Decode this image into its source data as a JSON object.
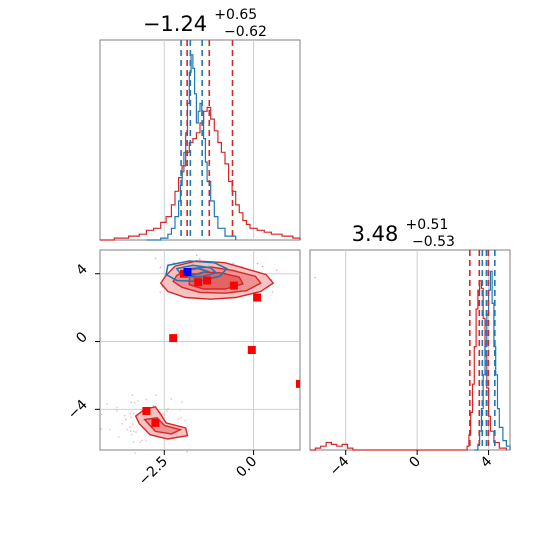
{
  "chart_data": {
    "type": "corner",
    "colors": {
      "blue": "#1f77b4",
      "red": "#d62728",
      "marker_blue": "#0000ff",
      "marker_red": "#ff0000",
      "grid": "#cfcfcf",
      "frame": "#808080"
    },
    "parameters": [
      {
        "title": {
          "main": "−1.24",
          "sup": "+0.65",
          "sub": "−0.62"
        },
        "range": [
          -4.3,
          1.3
        ],
        "ticks": [
          {
            "v": -2.5,
            "label": "−2.5"
          },
          {
            "v": 0.0,
            "label": "0.0"
          }
        ]
      },
      {
        "title": {
          "main": "3.48",
          "sup": "+0.51",
          "sub": "−0.53"
        },
        "range": [
          -6.0,
          5.2
        ],
        "ticks": [
          {
            "v": -4,
            "label": "−4"
          },
          {
            "v": 0,
            "label": "0"
          },
          {
            "v": 4,
            "label": "4"
          }
        ]
      }
    ],
    "scatter_y_ticks": [
      {
        "v": 4,
        "label": "4"
      },
      {
        "v": 0,
        "label": "0"
      },
      {
        "v": -4,
        "label": "−4"
      }
    ],
    "scatter_y_range": [
      -6.4,
      5.4
    ],
    "hist1": {
      "red_quantiles": [
        -1.86,
        -1.24,
        -0.59
      ],
      "blue_quantiles": [
        -2.03,
        -1.77,
        -1.44
      ],
      "red_hist": [
        [
          -4.3,
          0
        ],
        [
          -3.9,
          0.01
        ],
        [
          -3.5,
          0.02
        ],
        [
          -3.2,
          0.03
        ],
        [
          -3.0,
          0.05
        ],
        [
          -2.8,
          0.06
        ],
        [
          -2.6,
          0.09
        ],
        [
          -2.45,
          0.12
        ],
        [
          -2.3,
          0.18
        ],
        [
          -2.2,
          0.25
        ],
        [
          -2.1,
          0.32
        ],
        [
          -2.0,
          0.38
        ],
        [
          -1.9,
          0.45
        ],
        [
          -1.8,
          0.5
        ],
        [
          -1.7,
          0.52
        ],
        [
          -1.6,
          0.55
        ],
        [
          -1.5,
          0.6
        ],
        [
          -1.4,
          0.66
        ],
        [
          -1.3,
          0.68
        ],
        [
          -1.2,
          0.62
        ],
        [
          -1.1,
          0.56
        ],
        [
          -1.0,
          0.5
        ],
        [
          -0.9,
          0.45
        ],
        [
          -0.8,
          0.39
        ],
        [
          -0.7,
          0.3
        ],
        [
          -0.6,
          0.25
        ],
        [
          -0.5,
          0.18
        ],
        [
          -0.4,
          0.14
        ],
        [
          -0.3,
          0.1
        ],
        [
          -0.2,
          0.08
        ],
        [
          -0.1,
          0.06
        ],
        [
          0.1,
          0.05
        ],
        [
          0.3,
          0.04
        ],
        [
          0.5,
          0.03
        ],
        [
          0.8,
          0.02
        ],
        [
          1.1,
          0.01
        ],
        [
          1.3,
          0
        ]
      ],
      "blue_hist": [
        [
          -3.0,
          0
        ],
        [
          -2.6,
          0.01
        ],
        [
          -2.4,
          0.03
        ],
        [
          -2.3,
          0.06
        ],
        [
          -2.2,
          0.12
        ],
        [
          -2.1,
          0.2
        ],
        [
          -2.05,
          0.28
        ],
        [
          -2.0,
          0.35
        ],
        [
          -1.95,
          0.45
        ],
        [
          -1.9,
          0.55
        ],
        [
          -1.85,
          0.7
        ],
        [
          -1.8,
          0.86
        ],
        [
          -1.75,
          0.95
        ],
        [
          -1.7,
          0.88
        ],
        [
          -1.65,
          0.75
        ],
        [
          -1.6,
          0.6
        ],
        [
          -1.55,
          0.66
        ],
        [
          -1.5,
          0.7
        ],
        [
          -1.45,
          0.64
        ],
        [
          -1.4,
          0.52
        ],
        [
          -1.35,
          0.4
        ],
        [
          -1.3,
          0.3
        ],
        [
          -1.2,
          0.2
        ],
        [
          -1.1,
          0.12
        ],
        [
          -1.0,
          0.06
        ],
        [
          -0.8,
          0.02
        ],
        [
          -0.5,
          0
        ]
      ]
    },
    "hist2": {
      "red_quantiles": [
        2.95,
        3.48,
        3.99
      ],
      "blue_quantiles": [
        3.65,
        3.88,
        4.35
      ],
      "red_hist": [
        [
          -6.0,
          0
        ],
        [
          -5.7,
          0.01
        ],
        [
          -5.4,
          0.02
        ],
        [
          -5.1,
          0.04
        ],
        [
          -4.8,
          0.03
        ],
        [
          -4.5,
          0.02
        ],
        [
          -4.2,
          0.03
        ],
        [
          -3.9,
          0.01
        ],
        [
          -3.6,
          0.0
        ],
        [
          2.6,
          0
        ],
        [
          2.8,
          0.02
        ],
        [
          2.9,
          0.08
        ],
        [
          3.0,
          0.2
        ],
        [
          3.1,
          0.35
        ],
        [
          3.2,
          0.55
        ],
        [
          3.3,
          0.75
        ],
        [
          3.4,
          0.85
        ],
        [
          3.5,
          0.9
        ],
        [
          3.6,
          0.86
        ],
        [
          3.7,
          0.7
        ],
        [
          3.8,
          0.5
        ],
        [
          3.9,
          0.33
        ],
        [
          4.0,
          0.18
        ],
        [
          4.1,
          0.1
        ],
        [
          4.3,
          0.04
        ],
        [
          4.6,
          0.01
        ],
        [
          5.0,
          0
        ]
      ],
      "blue_hist": [
        [
          3.2,
          0
        ],
        [
          3.4,
          0.03
        ],
        [
          3.5,
          0.1
        ],
        [
          3.6,
          0.22
        ],
        [
          3.7,
          0.4
        ],
        [
          3.8,
          0.55
        ],
        [
          3.9,
          0.72
        ],
        [
          4.0,
          0.85
        ],
        [
          4.1,
          0.95
        ],
        [
          4.2,
          0.78
        ],
        [
          4.3,
          0.55
        ],
        [
          4.4,
          0.4
        ],
        [
          4.5,
          0.22
        ],
        [
          4.6,
          0.12
        ],
        [
          4.8,
          0.05
        ],
        [
          5.0,
          0.02
        ],
        [
          5.2,
          0
        ]
      ]
    },
    "scatter": {
      "red_markers": [
        [
          -1.95,
          4.0
        ],
        [
          -1.3,
          3.6
        ],
        [
          -1.55,
          3.5
        ],
        [
          -0.55,
          3.3
        ],
        [
          0.1,
          2.6
        ],
        [
          -2.25,
          0.2
        ],
        [
          -0.05,
          -0.5
        ],
        [
          1.3,
          -2.5
        ],
        [
          -3.0,
          -4.1
        ],
        [
          -2.75,
          -4.8
        ]
      ],
      "blue_markers": [
        [
          -1.85,
          4.1
        ]
      ],
      "red_contours_main": [
        [
          [
            -2.45,
            3.9
          ],
          [
            -2.2,
            4.45
          ],
          [
            -1.6,
            4.75
          ],
          [
            -0.8,
            4.65
          ],
          [
            -0.3,
            4.35
          ],
          [
            0.35,
            3.95
          ],
          [
            0.55,
            3.45
          ],
          [
            0.2,
            2.95
          ],
          [
            -0.5,
            2.6
          ],
          [
            -1.2,
            2.5
          ],
          [
            -1.9,
            2.6
          ],
          [
            -2.4,
            2.95
          ],
          [
            -2.6,
            3.45
          ]
        ],
        [
          [
            -2.15,
            3.9
          ],
          [
            -1.8,
            4.3
          ],
          [
            -1.2,
            4.4
          ],
          [
            -0.6,
            4.2
          ],
          [
            0.05,
            3.85
          ],
          [
            0.2,
            3.45
          ],
          [
            -0.2,
            3.0
          ],
          [
            -0.8,
            2.85
          ],
          [
            -1.5,
            2.9
          ],
          [
            -2.0,
            3.2
          ],
          [
            -2.25,
            3.55
          ]
        ],
        [
          [
            -1.8,
            3.85
          ],
          [
            -1.4,
            4.1
          ],
          [
            -0.9,
            4.05
          ],
          [
            -0.4,
            3.8
          ],
          [
            -0.3,
            3.4
          ],
          [
            -0.8,
            3.1
          ],
          [
            -1.4,
            3.1
          ],
          [
            -1.8,
            3.35
          ]
        ]
      ],
      "red_contours_low": [
        [
          [
            -3.3,
            -4.4
          ],
          [
            -3.2,
            -4.85
          ],
          [
            -2.9,
            -5.5
          ],
          [
            -2.4,
            -5.75
          ],
          [
            -1.85,
            -5.55
          ],
          [
            -1.9,
            -5.1
          ],
          [
            -2.45,
            -4.8
          ],
          [
            -2.6,
            -4.3
          ],
          [
            -2.75,
            -3.85
          ],
          [
            -3.05,
            -4.0
          ]
        ],
        [
          [
            -3.05,
            -4.6
          ],
          [
            -2.75,
            -5.3
          ],
          [
            -2.3,
            -5.45
          ],
          [
            -2.05,
            -5.2
          ],
          [
            -2.5,
            -4.95
          ],
          [
            -2.7,
            -4.5
          ]
        ]
      ],
      "blue_contours": [
        [
          [
            -2.4,
            4.5
          ],
          [
            -1.8,
            4.75
          ],
          [
            -1.1,
            4.65
          ],
          [
            -0.75,
            4.3
          ],
          [
            -0.95,
            3.85
          ],
          [
            -1.55,
            3.55
          ],
          [
            -2.15,
            3.6
          ],
          [
            -2.45,
            3.95
          ]
        ],
        [
          [
            -2.15,
            4.3
          ],
          [
            -1.7,
            4.5
          ],
          [
            -1.2,
            4.35
          ],
          [
            -1.05,
            4.05
          ],
          [
            -1.5,
            3.8
          ],
          [
            -2.0,
            3.85
          ]
        ],
        [
          [
            -1.9,
            4.2
          ],
          [
            -1.55,
            4.3
          ],
          [
            -1.3,
            4.15
          ],
          [
            -1.55,
            3.98
          ],
          [
            -1.85,
            4.02
          ]
        ]
      ]
    }
  }
}
